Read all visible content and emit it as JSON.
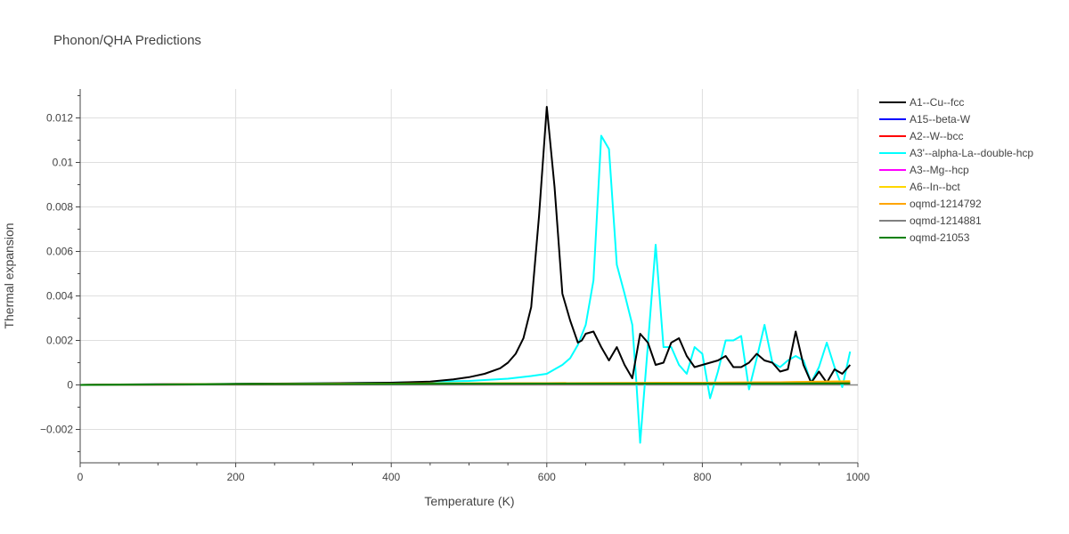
{
  "chart_data": {
    "type": "line",
    "title": "Phonon/QHA Predictions",
    "xlabel": "Temperature (K)",
    "ylabel": "Thermal expansion",
    "xlim": [
      0,
      1000
    ],
    "ylim": [
      -0.0035,
      0.0133
    ],
    "xticks": [
      0,
      200,
      400,
      600,
      800,
      1000
    ],
    "xtick_labels": [
      "0",
      "200",
      "400",
      "600",
      "800",
      "1000"
    ],
    "yticks": [
      -0.002,
      0,
      0.002,
      0.004,
      0.006,
      0.008,
      0.01,
      0.012
    ],
    "ytick_labels": [
      "−0.002",
      "0",
      "0.002",
      "0.004",
      "0.006",
      "0.008",
      "0.01",
      "0.012"
    ],
    "grid": true,
    "legend_position": "right",
    "series": [
      {
        "name": "A1--Cu--fcc",
        "color": "#000000",
        "x": [
          0,
          50,
          100,
          200,
          300,
          400,
          450,
          480,
          500,
          520,
          540,
          550,
          560,
          570,
          580,
          590,
          600,
          610,
          620,
          630,
          640,
          645,
          650,
          660,
          670,
          680,
          690,
          700,
          710,
          720,
          730,
          740,
          750,
          760,
          770,
          780,
          790,
          800,
          820,
          830,
          840,
          850,
          860,
          870,
          880,
          890,
          900,
          910,
          920,
          930,
          940,
          950,
          960,
          970,
          980,
          990
        ],
        "y": [
          0,
          2e-05,
          3e-05,
          5e-05,
          7e-05,
          0.0001,
          0.00015,
          0.00025,
          0.00035,
          0.0005,
          0.00075,
          0.001,
          0.0014,
          0.0021,
          0.0035,
          0.0076,
          0.0125,
          0.0089,
          0.0041,
          0.0029,
          0.0019,
          0.002,
          0.0023,
          0.0024,
          0.0017,
          0.0011,
          0.0017,
          0.0009,
          0.0003,
          0.0023,
          0.0019,
          0.0009,
          0.001,
          0.0019,
          0.0021,
          0.0013,
          0.0008,
          0.0009,
          0.0011,
          0.0013,
          0.0008,
          0.0008,
          0.001,
          0.0014,
          0.0011,
          0.001,
          0.0006,
          0.0007,
          0.0024,
          0.0009,
          0.0001,
          0.0006,
          0.0001,
          0.0007,
          0.0005,
          0.0009
        ]
      },
      {
        "name": "A15--beta-W",
        "color": "#0000ff",
        "x": [
          0,
          200,
          400,
          600,
          800,
          990
        ],
        "y": [
          0,
          4e-05,
          5e-05,
          6e-05,
          7e-05,
          8e-05
        ]
      },
      {
        "name": "A2--W--bcc",
        "color": "#ff0000",
        "x": [
          0,
          200,
          400,
          600,
          800,
          990
        ],
        "y": [
          0,
          3e-05,
          4e-05,
          5e-05,
          6e-05,
          7e-05
        ]
      },
      {
        "name": "A3'--alpha-La--double-hcp",
        "color": "#00ffff",
        "x": [
          0,
          100,
          200,
          300,
          400,
          500,
          550,
          580,
          600,
          610,
          620,
          630,
          640,
          650,
          660,
          670,
          680,
          690,
          700,
          710,
          715,
          720,
          730,
          740,
          750,
          760,
          770,
          780,
          790,
          800,
          810,
          820,
          830,
          840,
          850,
          860,
          870,
          880,
          890,
          900,
          910,
          920,
          930,
          940,
          950,
          960,
          970,
          980,
          990
        ],
        "y": [
          0,
          2e-05,
          4e-05,
          7e-05,
          0.0001,
          0.00018,
          0.00028,
          0.0004,
          0.0005,
          0.0007,
          0.0009,
          0.0012,
          0.0018,
          0.0027,
          0.0047,
          0.0112,
          0.0106,
          0.0054,
          0.0041,
          0.0027,
          0.0002,
          -0.0026,
          0.0018,
          0.0063,
          0.0017,
          0.0017,
          0.0009,
          0.0005,
          0.0017,
          0.0014,
          -0.0006,
          0.0006,
          0.002,
          0.002,
          0.0022,
          -0.0002,
          0.0012,
          0.0027,
          0.001,
          0.0008,
          0.0011,
          0.0013,
          0.0011,
          0.0001,
          0.0008,
          0.0019,
          0.0008,
          -0.0001,
          0.0015
        ]
      },
      {
        "name": "A3--Mg--hcp",
        "color": "#ff00ff",
        "x": [
          0,
          200,
          400,
          600,
          800,
          990
        ],
        "y": [
          0,
          4e-05,
          5e-05,
          6e-05,
          7e-05,
          8e-05
        ]
      },
      {
        "name": "A6--In--bct",
        "color": "#ffd700",
        "x": [
          0,
          200,
          400,
          600,
          800,
          900,
          990
        ],
        "y": [
          0,
          4e-05,
          6e-05,
          8e-05,
          0.0001,
          0.00012,
          0.00017
        ]
      },
      {
        "name": "oqmd-1214792",
        "color": "#ffa500",
        "x": [
          0,
          200,
          400,
          600,
          800,
          900,
          990
        ],
        "y": [
          0,
          4e-05,
          6e-05,
          8e-05,
          0.0001,
          0.00012,
          0.00014
        ]
      },
      {
        "name": "oqmd-1214881",
        "color": "#808080",
        "x": [
          0,
          200,
          400,
          600,
          800,
          990
        ],
        "y": [
          0,
          3e-05,
          4e-05,
          5e-05,
          6e-05,
          7e-05
        ]
      },
      {
        "name": "oqmd-21053",
        "color": "#008000",
        "x": [
          0,
          100,
          200,
          400,
          600,
          800,
          990
        ],
        "y": [
          0,
          2e-05,
          4e-05,
          5e-05,
          6e-05,
          6e-05,
          7e-05
        ]
      }
    ]
  }
}
